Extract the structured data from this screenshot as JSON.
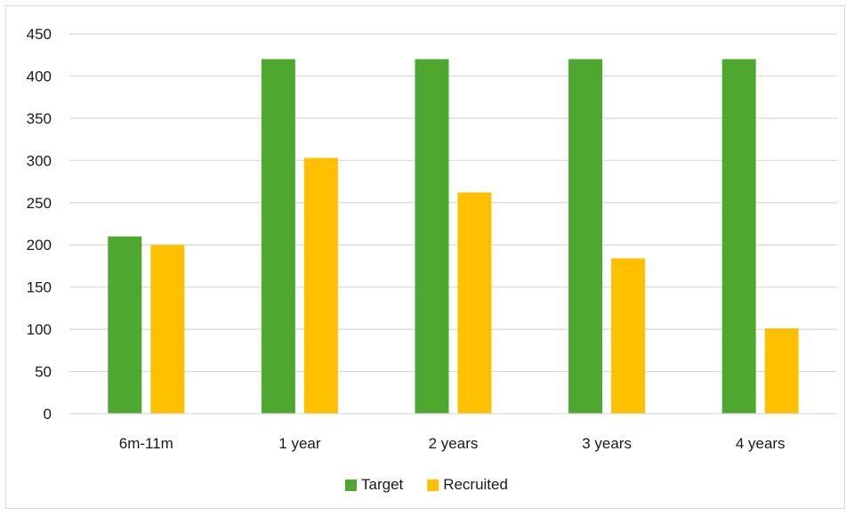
{
  "chart_data": {
    "type": "bar",
    "title": "",
    "xlabel": "",
    "ylabel": "",
    "categories": [
      "6m-11m",
      "1 year",
      "2 years",
      "3 years",
      "4 years"
    ],
    "series": [
      {
        "name": "Target",
        "values": [
          210,
          420,
          420,
          420,
          420
        ],
        "color": "#4ea72e"
      },
      {
        "name": "Recruited",
        "values": [
          200,
          303,
          262,
          184,
          101
        ],
        "color": "#ffc000"
      }
    ],
    "ylim": [
      0,
      450
    ],
    "yticks": [
      0,
      50,
      100,
      150,
      200,
      250,
      300,
      350,
      400,
      450
    ],
    "grid": true,
    "legend_position": "bottom"
  }
}
